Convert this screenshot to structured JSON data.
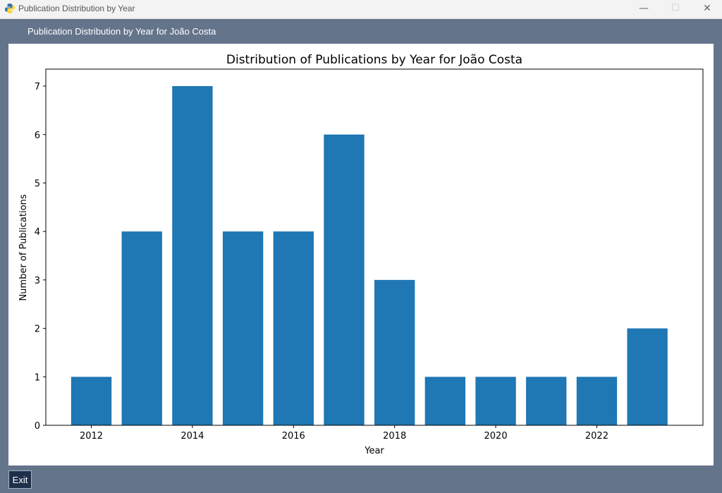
{
  "window": {
    "title": "Publication Distribution by Year",
    "minimize": "—",
    "maximize": "☐",
    "close": "✕"
  },
  "header": {
    "label": "Publication Distribution by Year for João Costa"
  },
  "colors": {
    "bar": "#1f77b4",
    "background": "#64748b",
    "exit_button": "#1e2f4a"
  },
  "chart_data": {
    "type": "bar",
    "title": "Distribution of Publications by Year for João Costa",
    "xlabel": "Year",
    "ylabel": "Number of Publications",
    "x": [
      2012,
      2013,
      2014,
      2015,
      2016,
      2017,
      2018,
      2019,
      2020,
      2021,
      2022,
      2023
    ],
    "values": [
      1,
      4,
      7,
      4,
      4,
      6,
      3,
      1,
      1,
      1,
      1,
      2
    ],
    "xticks": [
      2012,
      2014,
      2016,
      2018,
      2020,
      2022
    ],
    "yticks": [
      0,
      1,
      2,
      3,
      4,
      5,
      6,
      7
    ],
    "ylim": [
      0,
      7.35
    ],
    "xlim": [
      2011.1,
      2024.1
    ],
    "grid": false,
    "legend": "none"
  },
  "footer": {
    "exit_label": "Exit"
  }
}
